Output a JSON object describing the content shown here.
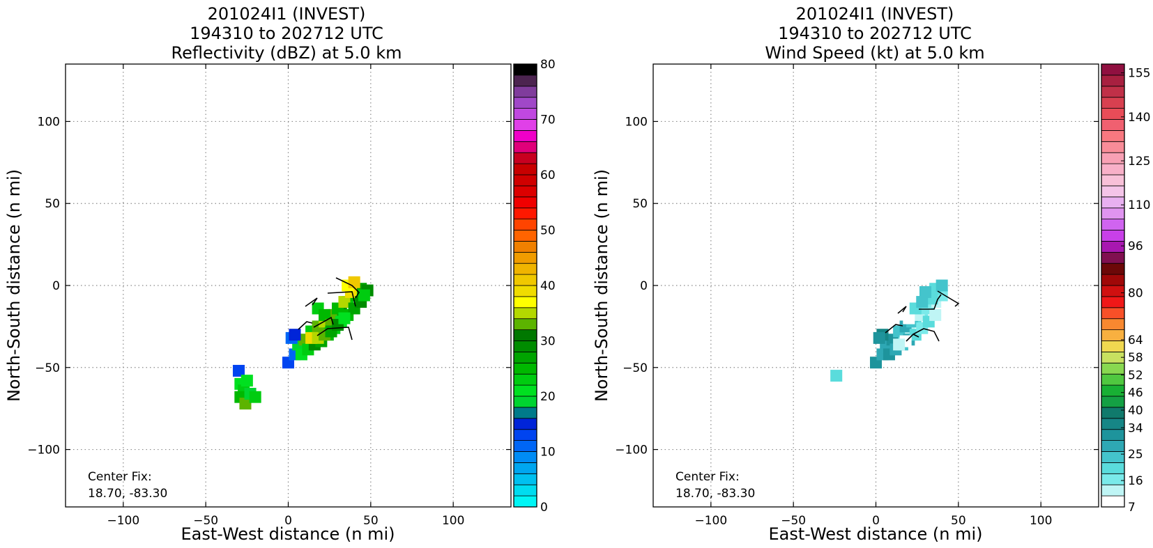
{
  "chart_data": [
    {
      "type": "heatmap",
      "title": [
        "201024I1 (INVEST)",
        "194310 to 202712 UTC",
        "Reflectivity (dBZ) at 5.0 km"
      ],
      "xlabel": "East-West distance (n mi)",
      "ylabel": "North-South distance (n mi)",
      "xlim": [
        -135,
        135
      ],
      "ylim": [
        -135,
        135
      ],
      "xticks": [
        -100,
        -50,
        0,
        50,
        100
      ],
      "yticks": [
        -100,
        -50,
        0,
        50,
        100
      ],
      "xtick_labels": [
        "−100",
        "−50",
        "0",
        "50",
        "100"
      ],
      "ytick_labels": [
        "−100",
        "−50",
        "0",
        "50",
        "100"
      ],
      "grid": true,
      "annotation": [
        "Center Fix:",
        "18.70, -83.30"
      ],
      "colorbar": {
        "min": 0,
        "max": 80,
        "tick_values": [
          0,
          10,
          20,
          30,
          40,
          50,
          60,
          70,
          80
        ],
        "tick_labels": [
          "0",
          "10",
          "20",
          "30",
          "40",
          "50",
          "60",
          "70",
          "80"
        ],
        "colors": [
          "#00f5f5",
          "#00dcf0",
          "#00c0f0",
          "#00a6f0",
          "#008cf5",
          "#0066f5",
          "#0044f0",
          "#0024d8",
          "#007a8a",
          "#00d430",
          "#00e020",
          "#00cc10",
          "#00b800",
          "#00a400",
          "#008c00",
          "#007800",
          "#5cb400",
          "#b4d800",
          "#ffff00",
          "#f0dc00",
          "#f0c800",
          "#f0b400",
          "#f09c00",
          "#f08000",
          "#ff6400",
          "#ff4400",
          "#ff1800",
          "#f00000",
          "#dc0000",
          "#d00000",
          "#c80000",
          "#c80020",
          "#e0007a",
          "#f000c8",
          "#e040e8",
          "#c048e0",
          "#a048c8",
          "#803c9c",
          "#4c2450",
          "#000000"
        ]
      },
      "series": [
        {
          "cells": [
            [
              0,
              -47,
              "#0044f0"
            ],
            [
              4,
              -42,
              "#0066f5"
            ],
            [
              8,
              -38,
              "#00c0f0"
            ],
            [
              12,
              -34,
              "#00a6f0"
            ],
            [
              16,
              -30,
              "#00e020"
            ],
            [
              20,
              -26,
              "#00cc10"
            ],
            [
              24,
              -22,
              "#00b800"
            ],
            [
              28,
              -18,
              "#00a400"
            ],
            [
              32,
              -14,
              "#008c00"
            ],
            [
              36,
              -10,
              "#00cc10"
            ],
            [
              40,
              -6,
              "#00b800"
            ],
            [
              44,
              -2,
              "#00a400"
            ],
            [
              48,
              -3,
              "#008c00"
            ],
            [
              6,
              -36,
              "#00d430"
            ],
            [
              10,
              -33,
              "#5cb400"
            ],
            [
              14,
              -28,
              "#00cc10"
            ],
            [
              18,
              -25,
              "#5cb400"
            ],
            [
              22,
              -22,
              "#b4d800"
            ],
            [
              26,
              -18,
              "#5cb400"
            ],
            [
              30,
              -14,
              "#00b800"
            ],
            [
              34,
              -10,
              "#b4d800"
            ],
            [
              38,
              -4,
              "#f0dc00"
            ],
            [
              36,
              0,
              "#ffff00"
            ],
            [
              40,
              2,
              "#f0c800"
            ],
            [
              8,
              -42,
              "#00e020"
            ],
            [
              12,
              -39,
              "#00cc10"
            ],
            [
              16,
              -36,
              "#008c00"
            ],
            [
              20,
              -34,
              "#00a400"
            ],
            [
              24,
              -30,
              "#00b800"
            ],
            [
              28,
              -26,
              "#00cc10"
            ],
            [
              32,
              -22,
              "#00e020"
            ],
            [
              36,
              -18,
              "#00b800"
            ],
            [
              40,
              -14,
              "#00a400"
            ],
            [
              44,
              -10,
              "#008c00"
            ],
            [
              46,
              -6,
              "#00cc10"
            ],
            [
              2,
              -32,
              "#0066f5"
            ],
            [
              4,
              -30,
              "#0024d8"
            ],
            [
              18,
              -14,
              "#00cc10"
            ],
            [
              22,
              -18,
              "#00b800"
            ],
            [
              26,
              -24,
              "#5cb400"
            ],
            [
              14,
              -32,
              "#f0dc00"
            ],
            [
              18,
              -32,
              "#b4d800"
            ],
            [
              22,
              -30,
              "#5cb400"
            ],
            [
              26,
              -28,
              "#00a400"
            ],
            [
              30,
              -24,
              "#008c00"
            ],
            [
              34,
              -20,
              "#00e020"
            ],
            [
              -30,
              -52,
              "#0044f0"
            ],
            [
              -29,
              -60,
              "#00e020"
            ],
            [
              -27,
              -64,
              "#00cc10"
            ],
            [
              -29,
              -68,
              "#00b800"
            ],
            [
              -26,
              -72,
              "#5cb400"
            ],
            [
              -25,
              -58,
              "#00e020"
            ],
            [
              -23,
              -66,
              "#00d430"
            ],
            [
              -20,
              -68,
              "#00cc10"
            ]
          ]
        }
      ]
    },
    {
      "type": "heatmap",
      "title": [
        "201024I1 (INVEST)",
        "194310 to 202712 UTC",
        "Wind Speed (kt) at 5.0 km"
      ],
      "xlabel": "East-West distance (n mi)",
      "ylabel": "North-South distance (n mi)",
      "xlim": [
        -135,
        135
      ],
      "ylim": [
        -135,
        135
      ],
      "xticks": [
        -100,
        -50,
        0,
        50,
        100
      ],
      "yticks": [
        -100,
        -50,
        0,
        50,
        100
      ],
      "xtick_labels": [
        "−100",
        "−50",
        "0",
        "50",
        "100"
      ],
      "ytick_labels": [
        "−100",
        "−50",
        "0",
        "50",
        "100"
      ],
      "grid": true,
      "annotation": [
        "Center Fix:",
        "18.70, -83.30"
      ],
      "colorbar": {
        "min": 7,
        "max": 158,
        "tick_values": [
          7,
          16,
          25,
          34,
          40,
          46,
          52,
          58,
          64,
          80,
          96,
          110,
          125,
          140,
          155
        ],
        "tick_labels": [
          "7",
          "16",
          "25",
          "34",
          "40",
          "46",
          "52",
          "58",
          "64",
          "80",
          "96",
          "110",
          "125",
          "140",
          "155"
        ],
        "colors": [
          "#ffffff",
          "#bff5f5",
          "#7aeaea",
          "#5adcdc",
          "#44c4cc",
          "#2ea8b4",
          "#1e949c",
          "#168686",
          "#107a6c",
          "#14a044",
          "#18b034",
          "#50c840",
          "#88d850",
          "#c8e060",
          "#f0d850",
          "#f8b040",
          "#f88830",
          "#f85028",
          "#f01818",
          "#d01010",
          "#a00808",
          "#6c0808",
          "#801050",
          "#a818b0",
          "#c840e8",
          "#d064f0",
          "#e094f0",
          "#e8b0f0",
          "#f4c4e8",
          "#f8c0d8",
          "#f8b0c8",
          "#f8a0b4",
          "#f88c98",
          "#f87880",
          "#f06070",
          "#e84c58",
          "#d84050",
          "#c03048",
          "#a82040",
          "#901040"
        ]
      },
      "series": [
        {
          "cells": [
            [
              0,
              -47,
              "#1e949c"
            ],
            [
              4,
              -42,
              "#2ea8b4"
            ],
            [
              8,
              -38,
              "#44c4cc"
            ],
            [
              12,
              -34,
              "#5adcdc"
            ],
            [
              16,
              -30,
              "#7aeaea"
            ],
            [
              20,
              -26,
              "#bff5f5"
            ],
            [
              24,
              -22,
              "#5adcdc"
            ],
            [
              28,
              -18,
              "#7aeaea"
            ],
            [
              32,
              -14,
              "#5adcdc"
            ],
            [
              36,
              -10,
              "#bff5f5"
            ],
            [
              40,
              -6,
              "#7aeaea"
            ],
            [
              36,
              -2,
              "#5adcdc"
            ],
            [
              40,
              0,
              "#44c4cc"
            ],
            [
              6,
              -36,
              "#2ea8b4"
            ],
            [
              10,
              -33,
              "#1e949c"
            ],
            [
              14,
              -28,
              "#44c4cc"
            ],
            [
              18,
              -25,
              "#2ea8b4"
            ],
            [
              22,
              -22,
              "#44c4cc"
            ],
            [
              26,
              -18,
              "#bff5f5"
            ],
            [
              30,
              -14,
              "#7aeaea"
            ],
            [
              34,
              -8,
              "#5adcdc"
            ],
            [
              30,
              -4,
              "#44c4cc"
            ],
            [
              8,
              -42,
              "#1e949c"
            ],
            [
              12,
              -39,
              "#2ea8b4"
            ],
            [
              16,
              -36,
              "#44c4cc"
            ],
            [
              20,
              -33,
              "#2ea8b4"
            ],
            [
              24,
              -30,
              "#5adcdc"
            ],
            [
              28,
              -26,
              "#7aeaea"
            ],
            [
              32,
              -22,
              "#5adcdc"
            ],
            [
              36,
              -18,
              "#bff5f5"
            ],
            [
              4,
              -30,
              "#168686"
            ],
            [
              2,
              -32,
              "#1e949c"
            ],
            [
              20,
              -20,
              "#ffffff"
            ],
            [
              24,
              -14,
              "#5adcdc"
            ],
            [
              28,
              -10,
              "#44c4cc"
            ],
            [
              18,
              -34,
              "#ffffff"
            ],
            [
              14,
              -36,
              "#bff5f5"
            ],
            [
              -24,
              -55,
              "#5adcdc"
            ]
          ]
        }
      ]
    }
  ]
}
